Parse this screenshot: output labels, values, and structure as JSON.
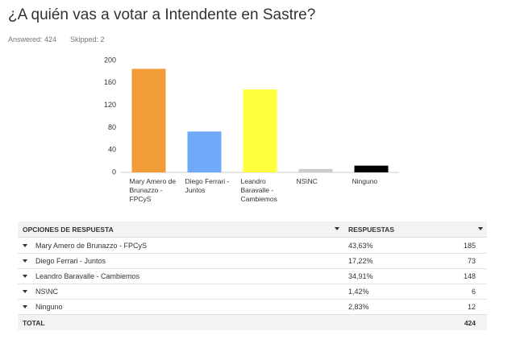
{
  "header": {
    "answered_label": "Answered:",
    "answered": 424,
    "skipped_label": "Skipped:",
    "skipped": 2
  },
  "chart_data": {
    "type": "bar",
    "title": "¿A quién vas a votar a Intendente en Sastre?",
    "categories": [
      "Mary Amero de Brunazzo - FPCyS",
      "Diego Ferrari - Juntos",
      "Leandro Baravalle - Cambiemos",
      "NS\\NC",
      "Ninguno"
    ],
    "values": [
      185,
      73,
      148,
      6,
      12
    ],
    "colors": [
      "#f29c38",
      "#70a9f7",
      "#ffff3c",
      "#cccccc",
      "#000000"
    ],
    "ylim": [
      0,
      200
    ],
    "yticks": [
      0,
      40,
      80,
      120,
      160,
      200
    ],
    "grid": false
  },
  "table": {
    "headers": [
      "OPCIONES DE RESPUESTA",
      "RESPUESTAS"
    ],
    "percents": [
      "43,63%",
      "17,22%",
      "34,91%",
      "1,42%",
      "2,83%"
    ],
    "total_label": "TOTAL"
  }
}
